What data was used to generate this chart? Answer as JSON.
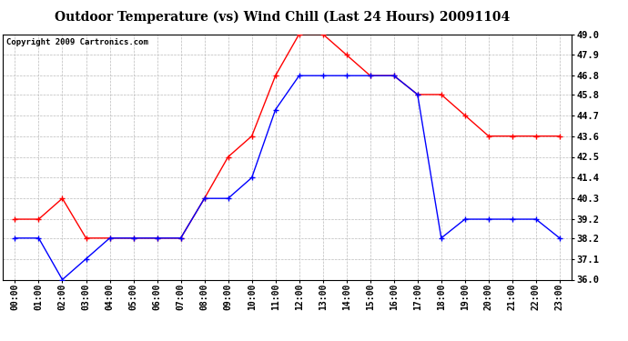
{
  "title": "Outdoor Temperature (vs) Wind Chill (Last 24 Hours) 20091104",
  "copyright": "Copyright 2009 Cartronics.com",
  "x_labels": [
    "00:00",
    "01:00",
    "02:00",
    "03:00",
    "04:00",
    "05:00",
    "06:00",
    "07:00",
    "08:00",
    "09:00",
    "10:00",
    "11:00",
    "12:00",
    "13:00",
    "14:00",
    "15:00",
    "16:00",
    "17:00",
    "18:00",
    "19:00",
    "20:00",
    "21:00",
    "22:00",
    "23:00"
  ],
  "temp_red": [
    39.2,
    39.2,
    40.3,
    38.2,
    38.2,
    38.2,
    38.2,
    38.2,
    40.3,
    42.5,
    43.6,
    46.8,
    49.0,
    49.0,
    47.9,
    46.8,
    46.8,
    45.8,
    45.8,
    44.7,
    43.6,
    43.6,
    43.6,
    43.6
  ],
  "wind_chill_blue": [
    38.2,
    38.2,
    36.0,
    37.1,
    38.2,
    38.2,
    38.2,
    38.2,
    40.3,
    40.3,
    41.4,
    45.0,
    46.8,
    46.8,
    46.8,
    46.8,
    46.8,
    45.8,
    38.2,
    39.2,
    39.2,
    39.2,
    39.2,
    38.2
  ],
  "ylim": [
    36.0,
    49.0
  ],
  "yticks": [
    36.0,
    37.1,
    38.2,
    39.2,
    40.3,
    41.4,
    42.5,
    43.6,
    44.7,
    45.8,
    46.8,
    47.9,
    49.0
  ],
  "red_color": "#ff0000",
  "blue_color": "#0000ff",
  "bg_color": "#ffffff",
  "grid_color": "#bbbbbb",
  "title_fontsize": 10,
  "copyright_fontsize": 6.5,
  "tick_fontsize": 7,
  "ytick_fontsize": 7.5
}
